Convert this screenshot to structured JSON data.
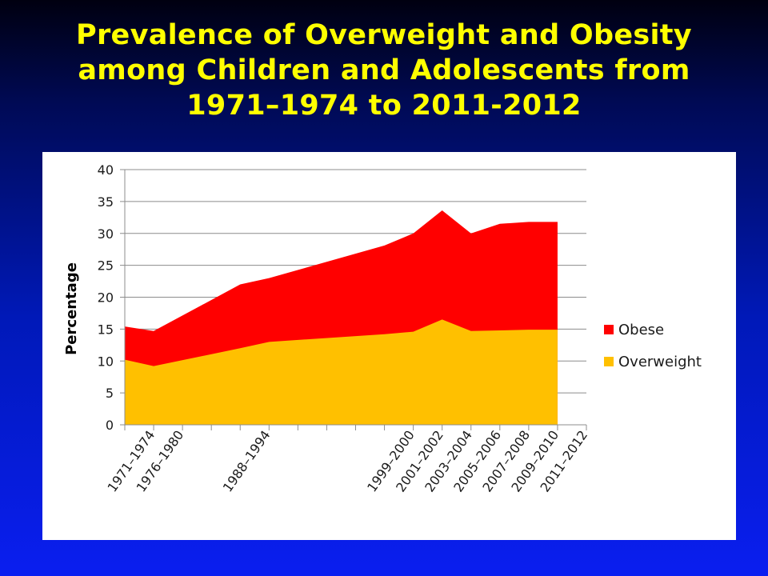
{
  "slide": {
    "title_lines": [
      "Prevalence of Overweight and Obesity",
      "among Children and Adolescents from",
      "1971–1974 to 2011-2012"
    ]
  },
  "chart_data": {
    "type": "area",
    "stacked": true,
    "ylabel": "Percentage",
    "ylim": [
      0,
      40
    ],
    "yticks": [
      0,
      5,
      10,
      15,
      20,
      25,
      30,
      35,
      40
    ],
    "grid": true,
    "legend_position": "right",
    "x_slots": 16,
    "categories": [
      "1971–1974",
      "1976–1980",
      "1988–1994",
      "1999–2000",
      "2001–2002",
      "2003–2004",
      "2005–2006",
      "2007–2008",
      "2009–2010",
      "2011–2012"
    ],
    "category_slots": [
      0,
      1,
      4,
      9,
      10,
      11,
      12,
      13,
      14,
      15
    ],
    "points": [
      {
        "slot": 0,
        "overweight": 10.2,
        "obese": 5.2
      },
      {
        "slot": 1,
        "overweight": 9.2,
        "obese": 5.5
      },
      {
        "slot": 4,
        "overweight": 12.0,
        "obese": 10.0
      },
      {
        "slot": 5,
        "overweight": 13.0,
        "obese": 10.0
      },
      {
        "slot": 9,
        "overweight": 14.2,
        "obese": 13.9
      },
      {
        "slot": 10,
        "overweight": 14.6,
        "obese": 15.4
      },
      {
        "slot": 11,
        "overweight": 16.5,
        "obese": 17.1
      },
      {
        "slot": 12,
        "overweight": 14.7,
        "obese": 15.3
      },
      {
        "slot": 13,
        "overweight": 14.8,
        "obese": 16.7
      },
      {
        "slot": 14,
        "overweight": 14.9,
        "obese": 16.9
      },
      {
        "slot": 15,
        "overweight": 14.9,
        "obese": 16.9
      }
    ],
    "series": [
      {
        "name": "Obese",
        "color": "#ff0000"
      },
      {
        "name": "Overweight",
        "color": "#ffc000"
      }
    ]
  }
}
